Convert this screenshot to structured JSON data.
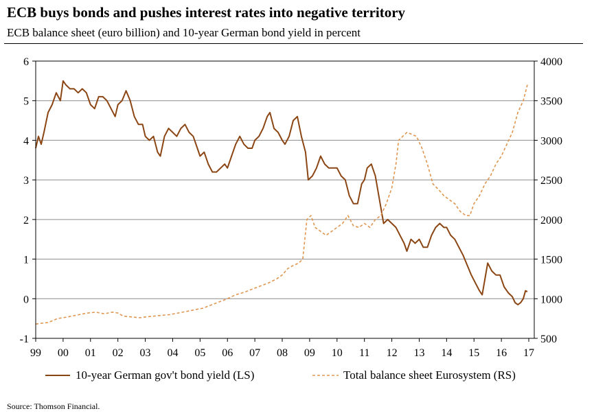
{
  "chart_data": {
    "type": "line",
    "title": "ECB buys bonds and pushes interest rates into negative territory",
    "subtitle": "ECB balance sheet (euro billion) and 10-year German bond yield in percent",
    "source": "Source: Thomson Financial.",
    "grid": true,
    "legend_position": "bottom",
    "x_ticks": [
      "99",
      "00",
      "01",
      "02",
      "03",
      "04",
      "05",
      "06",
      "07",
      "08",
      "09",
      "10",
      "11",
      "12",
      "13",
      "14",
      "15",
      "16",
      "17"
    ],
    "x_range": [
      1999,
      2017.2
    ],
    "y_left": {
      "range": [
        -1,
        6
      ],
      "ticks": [
        "-1",
        "0",
        "1",
        "2",
        "3",
        "4",
        "5",
        "6"
      ]
    },
    "y_right": {
      "range": [
        500,
        4000
      ],
      "ticks": [
        "500",
        "1000",
        "1500",
        "2000",
        "2500",
        "3000",
        "3500",
        "4000"
      ]
    },
    "series": [
      {
        "name": "10-year German gov't bond yield (LS)",
        "axis": "left",
        "style": "solid",
        "color": "#8B4513",
        "points": [
          [
            1999.0,
            3.8
          ],
          [
            1999.1,
            4.1
          ],
          [
            1999.2,
            3.9
          ],
          [
            1999.3,
            4.2
          ],
          [
            1999.45,
            4.7
          ],
          [
            1999.6,
            4.9
          ],
          [
            1999.75,
            5.2
          ],
          [
            1999.9,
            5.0
          ],
          [
            2000.0,
            5.5
          ],
          [
            2000.1,
            5.4
          ],
          [
            2000.25,
            5.3
          ],
          [
            2000.4,
            5.3
          ],
          [
            2000.55,
            5.2
          ],
          [
            2000.7,
            5.3
          ],
          [
            2000.85,
            5.2
          ],
          [
            2001.0,
            4.9
          ],
          [
            2001.15,
            4.8
          ],
          [
            2001.3,
            5.1
          ],
          [
            2001.45,
            5.1
          ],
          [
            2001.6,
            5.0
          ],
          [
            2001.75,
            4.8
          ],
          [
            2001.9,
            4.6
          ],
          [
            2002.0,
            4.9
          ],
          [
            2002.15,
            5.0
          ],
          [
            2002.3,
            5.25
          ],
          [
            2002.45,
            5.0
          ],
          [
            2002.6,
            4.6
          ],
          [
            2002.75,
            4.4
          ],
          [
            2002.9,
            4.4
          ],
          [
            2003.0,
            4.1
          ],
          [
            2003.15,
            4.0
          ],
          [
            2003.3,
            4.1
          ],
          [
            2003.45,
            3.7
          ],
          [
            2003.55,
            3.6
          ],
          [
            2003.7,
            4.1
          ],
          [
            2003.85,
            4.3
          ],
          [
            2004.0,
            4.2
          ],
          [
            2004.15,
            4.1
          ],
          [
            2004.3,
            4.3
          ],
          [
            2004.45,
            4.4
          ],
          [
            2004.6,
            4.2
          ],
          [
            2004.75,
            4.1
          ],
          [
            2004.9,
            3.8
          ],
          [
            2005.0,
            3.6
          ],
          [
            2005.15,
            3.7
          ],
          [
            2005.3,
            3.4
          ],
          [
            2005.45,
            3.2
          ],
          [
            2005.6,
            3.2
          ],
          [
            2005.75,
            3.3
          ],
          [
            2005.9,
            3.4
          ],
          [
            2006.0,
            3.3
          ],
          [
            2006.15,
            3.6
          ],
          [
            2006.3,
            3.9
          ],
          [
            2006.45,
            4.1
          ],
          [
            2006.6,
            3.9
          ],
          [
            2006.75,
            3.8
          ],
          [
            2006.9,
            3.8
          ],
          [
            2007.0,
            4.0
          ],
          [
            2007.15,
            4.1
          ],
          [
            2007.3,
            4.3
          ],
          [
            2007.45,
            4.6
          ],
          [
            2007.55,
            4.7
          ],
          [
            2007.7,
            4.3
          ],
          [
            2007.85,
            4.2
          ],
          [
            2008.0,
            4.0
          ],
          [
            2008.1,
            3.9
          ],
          [
            2008.25,
            4.1
          ],
          [
            2008.4,
            4.5
          ],
          [
            2008.55,
            4.6
          ],
          [
            2008.7,
            4.1
          ],
          [
            2008.85,
            3.7
          ],
          [
            2008.95,
            3.0
          ],
          [
            2009.1,
            3.1
          ],
          [
            2009.25,
            3.3
          ],
          [
            2009.4,
            3.6
          ],
          [
            2009.55,
            3.4
          ],
          [
            2009.7,
            3.3
          ],
          [
            2009.85,
            3.3
          ],
          [
            2010.0,
            3.3
          ],
          [
            2010.15,
            3.1
          ],
          [
            2010.3,
            3.0
          ],
          [
            2010.45,
            2.6
          ],
          [
            2010.6,
            2.4
          ],
          [
            2010.75,
            2.4
          ],
          [
            2010.9,
            2.9
          ],
          [
            2011.0,
            3.0
          ],
          [
            2011.1,
            3.3
          ],
          [
            2011.25,
            3.4
          ],
          [
            2011.4,
            3.1
          ],
          [
            2011.55,
            2.5
          ],
          [
            2011.7,
            1.9
          ],
          [
            2011.85,
            2.0
          ],
          [
            2012.0,
            1.9
          ],
          [
            2012.15,
            1.8
          ],
          [
            2012.3,
            1.6
          ],
          [
            2012.45,
            1.4
          ],
          [
            2012.55,
            1.2
          ],
          [
            2012.7,
            1.5
          ],
          [
            2012.85,
            1.4
          ],
          [
            2013.0,
            1.5
          ],
          [
            2013.15,
            1.3
          ],
          [
            2013.3,
            1.3
          ],
          [
            2013.45,
            1.6
          ],
          [
            2013.6,
            1.8
          ],
          [
            2013.75,
            1.9
          ],
          [
            2013.9,
            1.8
          ],
          [
            2014.0,
            1.8
          ],
          [
            2014.15,
            1.6
          ],
          [
            2014.3,
            1.5
          ],
          [
            2014.45,
            1.3
          ],
          [
            2014.6,
            1.1
          ],
          [
            2014.75,
            0.85
          ],
          [
            2014.9,
            0.6
          ],
          [
            2015.05,
            0.4
          ],
          [
            2015.2,
            0.2
          ],
          [
            2015.3,
            0.1
          ],
          [
            2015.4,
            0.5
          ],
          [
            2015.5,
            0.9
          ],
          [
            2015.65,
            0.7
          ],
          [
            2015.8,
            0.6
          ],
          [
            2015.95,
            0.6
          ],
          [
            2016.1,
            0.3
          ],
          [
            2016.25,
            0.15
          ],
          [
            2016.4,
            0.05
          ],
          [
            2016.5,
            -0.1
          ],
          [
            2016.6,
            -0.15
          ],
          [
            2016.7,
            -0.1
          ],
          [
            2016.8,
            0.0
          ],
          [
            2016.88,
            0.2
          ],
          [
            2016.95,
            0.18
          ]
        ]
      },
      {
        "name": "Total balance sheet Eurosystem (RS)",
        "axis": "right",
        "style": "dashed",
        "color": "#E0964E",
        "points": [
          [
            1999.0,
            680
          ],
          [
            1999.2,
            690
          ],
          [
            1999.45,
            700
          ],
          [
            1999.6,
            720
          ],
          [
            1999.8,
            750
          ],
          [
            2000.0,
            760
          ],
          [
            2000.3,
            780
          ],
          [
            2000.6,
            800
          ],
          [
            2000.9,
            820
          ],
          [
            2001.2,
            830
          ],
          [
            2001.5,
            810
          ],
          [
            2001.8,
            830
          ],
          [
            2002.0,
            820
          ],
          [
            2002.2,
            780
          ],
          [
            2002.5,
            770
          ],
          [
            2002.8,
            760
          ],
          [
            2003.0,
            770
          ],
          [
            2003.3,
            780
          ],
          [
            2003.6,
            790
          ],
          [
            2003.9,
            800
          ],
          [
            2004.2,
            820
          ],
          [
            2004.5,
            840
          ],
          [
            2004.8,
            860
          ],
          [
            2005.1,
            880
          ],
          [
            2005.4,
            920
          ],
          [
            2005.7,
            960
          ],
          [
            2006.0,
            1000
          ],
          [
            2006.3,
            1050
          ],
          [
            2006.6,
            1080
          ],
          [
            2006.9,
            1120
          ],
          [
            2007.2,
            1160
          ],
          [
            2007.5,
            1200
          ],
          [
            2007.8,
            1250
          ],
          [
            2008.0,
            1300
          ],
          [
            2008.2,
            1380
          ],
          [
            2008.4,
            1420
          ],
          [
            2008.6,
            1450
          ],
          [
            2008.75,
            1500
          ],
          [
            2008.9,
            2000
          ],
          [
            2009.05,
            2050
          ],
          [
            2009.2,
            1900
          ],
          [
            2009.4,
            1850
          ],
          [
            2009.6,
            1800
          ],
          [
            2009.8,
            1850
          ],
          [
            2010.0,
            1900
          ],
          [
            2010.2,
            1950
          ],
          [
            2010.4,
            2050
          ],
          [
            2010.6,
            1920
          ],
          [
            2010.8,
            1900
          ],
          [
            2011.0,
            1950
          ],
          [
            2011.2,
            1900
          ],
          [
            2011.4,
            2000
          ],
          [
            2011.6,
            2050
          ],
          [
            2011.8,
            2200
          ],
          [
            2012.0,
            2400
          ],
          [
            2012.15,
            2700
          ],
          [
            2012.25,
            3000
          ],
          [
            2012.4,
            3050
          ],
          [
            2012.55,
            3100
          ],
          [
            2012.7,
            3080
          ],
          [
            2012.9,
            3050
          ],
          [
            2013.1,
            2900
          ],
          [
            2013.3,
            2700
          ],
          [
            2013.5,
            2450
          ],
          [
            2013.7,
            2380
          ],
          [
            2013.9,
            2300
          ],
          [
            2014.1,
            2250
          ],
          [
            2014.3,
            2200
          ],
          [
            2014.5,
            2100
          ],
          [
            2014.7,
            2050
          ],
          [
            2014.85,
            2050
          ],
          [
            2015.0,
            2200
          ],
          [
            2015.2,
            2300
          ],
          [
            2015.4,
            2450
          ],
          [
            2015.6,
            2550
          ],
          [
            2015.8,
            2700
          ],
          [
            2016.0,
            2800
          ],
          [
            2016.2,
            2950
          ],
          [
            2016.4,
            3100
          ],
          [
            2016.6,
            3350
          ],
          [
            2016.8,
            3500
          ],
          [
            2016.95,
            3700
          ]
        ]
      }
    ]
  }
}
